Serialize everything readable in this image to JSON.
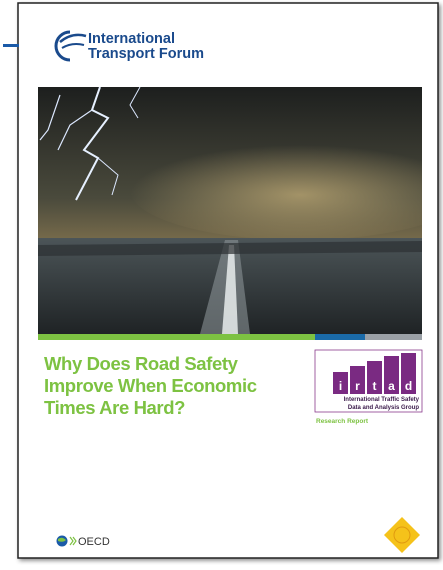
{
  "header": {
    "org_line1": "International",
    "org_line2": "Transport Forum"
  },
  "title": {
    "lines": [
      "Why Does Road Safety",
      "Improve When Economic",
      "Times Are Hard?"
    ]
  },
  "badge": {
    "letters": [
      "i",
      "r",
      "t",
      "a",
      "d"
    ],
    "subtitle_lines": [
      "International Traffic Safety",
      "Data and Analysis Group"
    ]
  },
  "report_type": "Research Report",
  "footer": {
    "publisher": "OECD"
  }
}
